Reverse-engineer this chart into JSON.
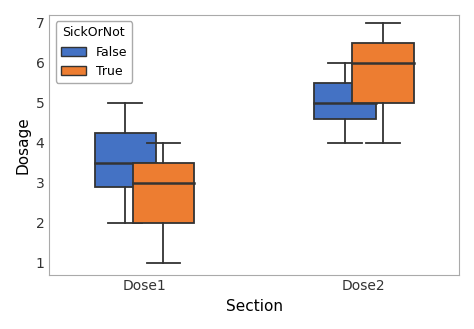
{
  "title": "",
  "xlabel": "Section",
  "ylabel": "Dosage",
  "legend_title": "SickOrNot",
  "legend_labels": [
    "False",
    "True"
  ],
  "colors": [
    "#4472c4",
    "#ed7d31"
  ],
  "edge_color": "#333333",
  "background_color": "#ffffff",
  "ylim": [
    0.7,
    7.2
  ],
  "yticks": [
    1,
    2,
    3,
    4,
    5,
    6,
    7
  ],
  "xtick_labels": [
    "Dose1",
    "Dose2"
  ],
  "groups": [
    "Dose1",
    "Dose2"
  ],
  "box_data": {
    "Dose1": {
      "False": {
        "whislo": 2.0,
        "q1": 2.9,
        "med": 3.5,
        "q3": 4.25,
        "whishi": 5.0
      },
      "True": {
        "whislo": 1.0,
        "q1": 2.0,
        "med": 3.0,
        "q3": 3.5,
        "whishi": 4.0
      }
    },
    "Dose2": {
      "False": {
        "whislo": 4.0,
        "q1": 4.6,
        "med": 5.0,
        "q3": 5.5,
        "whishi": 6.0
      },
      "True": {
        "whislo": 4.0,
        "q1": 5.0,
        "med": 6.0,
        "q3": 6.5,
        "whishi": 7.0
      }
    }
  },
  "box_width": 0.42,
  "group_positions": [
    1.0,
    2.5
  ],
  "offsets": [
    -0.13,
    0.13
  ],
  "cap_ratio": 0.55,
  "linewidth": 1.3,
  "median_linewidth": 1.8
}
